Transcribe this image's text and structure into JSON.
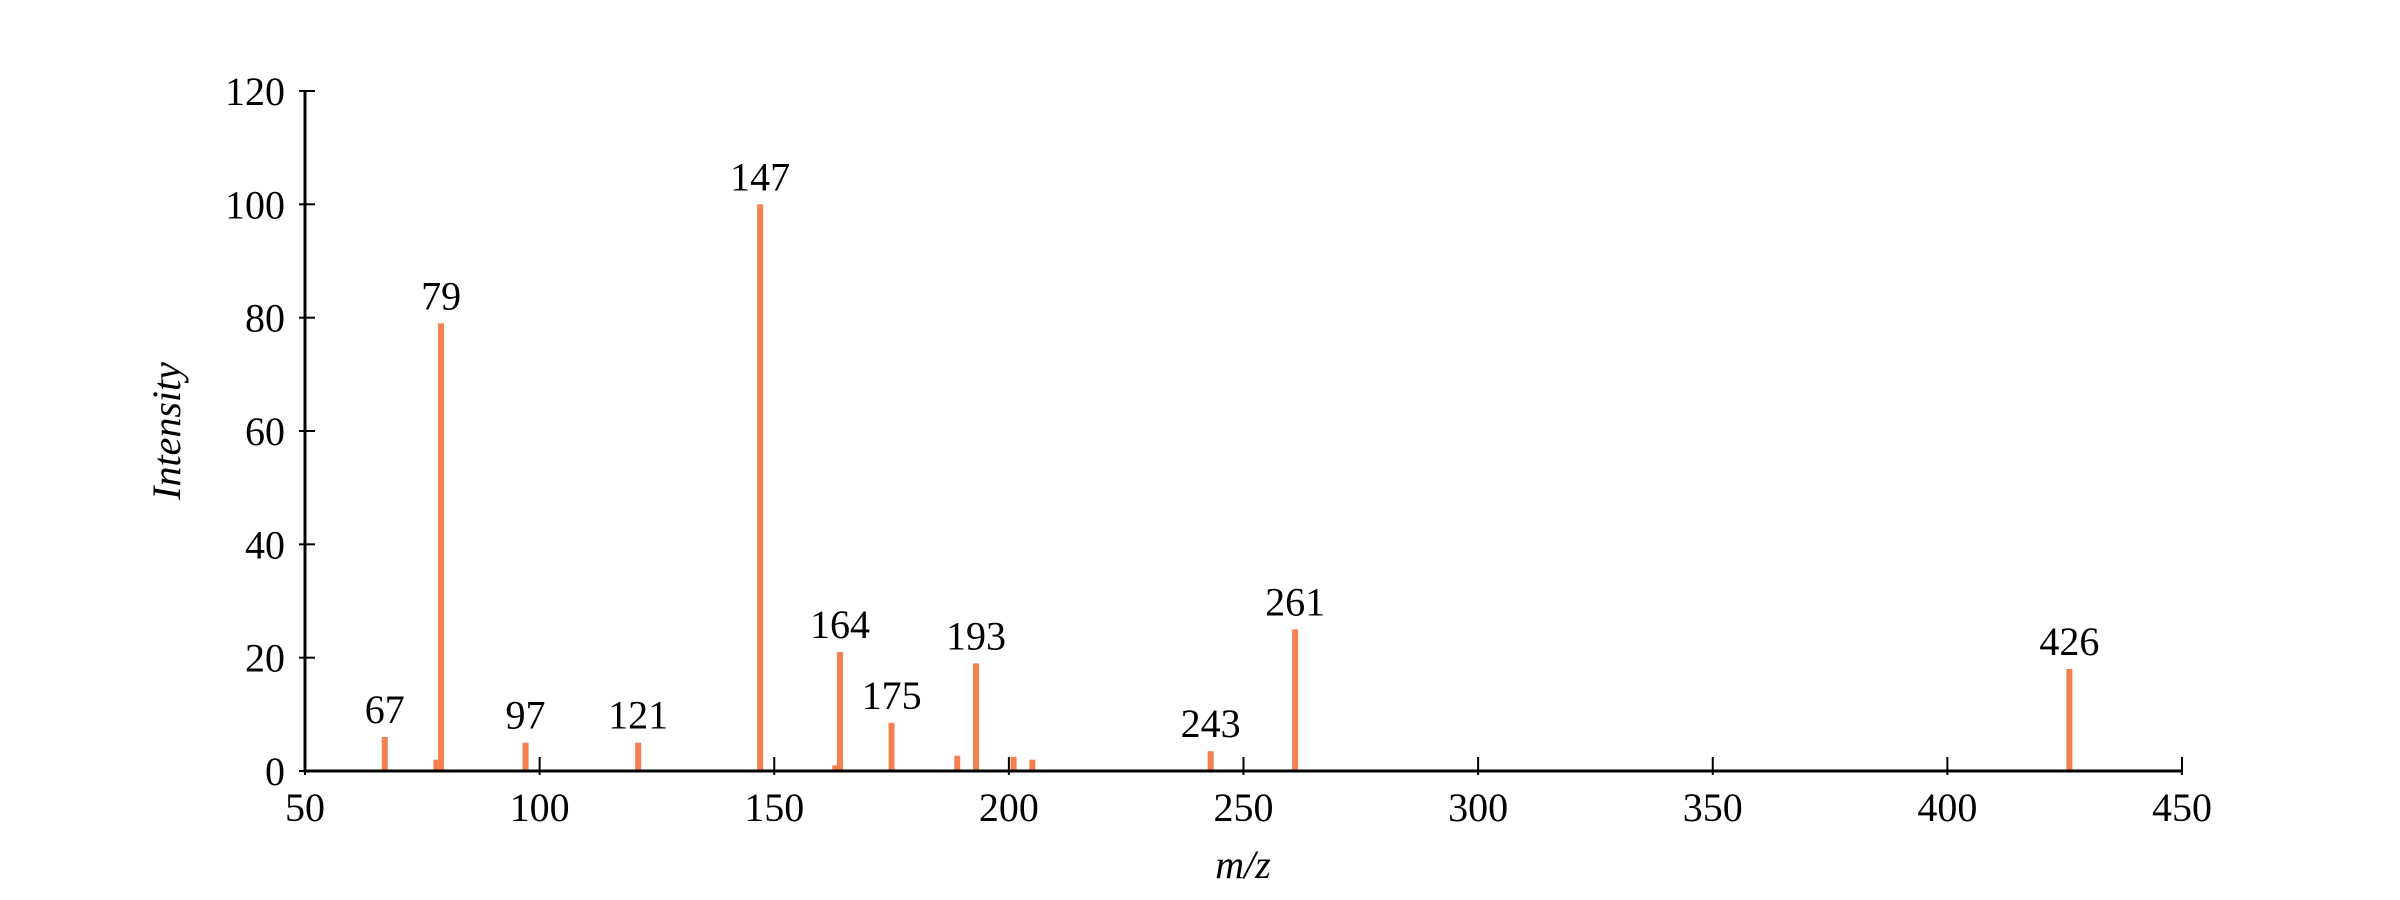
{
  "chart_data": {
    "type": "bar",
    "x": [
      67,
      78,
      79,
      97,
      121,
      147,
      163,
      164,
      175,
      189,
      193,
      201,
      205,
      243,
      261,
      426
    ],
    "values": [
      6,
      2,
      79,
      5,
      5,
      100,
      1,
      21,
      8.5,
      2.7,
      19,
      2.5,
      2,
      3.5,
      25,
      18
    ],
    "peak_labels": [
      67,
      79,
      97,
      121,
      147,
      164,
      175,
      193,
      243,
      261,
      426
    ],
    "color": "#f5804f",
    "xlabel": "m/z",
    "ylabel": "Intensity",
    "xlim": [
      50,
      450
    ],
    "xticks": [
      50,
      100,
      150,
      200,
      250,
      300,
      350,
      400,
      450
    ],
    "ylim": [
      0,
      120
    ],
    "yticks": [
      0,
      20,
      40,
      60,
      80,
      100,
      120
    ],
    "grid": false
  }
}
